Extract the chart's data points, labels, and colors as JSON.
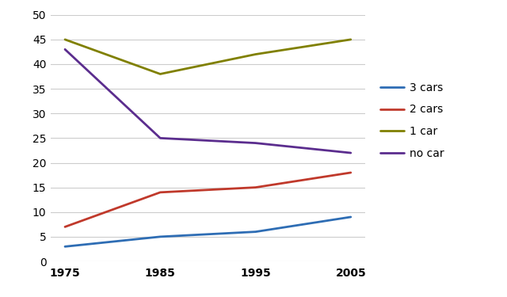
{
  "years": [
    1975,
    1985,
    1995,
    2005
  ],
  "series": {
    "3 cars": {
      "values": [
        3,
        5,
        6,
        9
      ],
      "color": "#2e6db4",
      "linewidth": 2.0
    },
    "2 cars": {
      "values": [
        7,
        14,
        15,
        18
      ],
      "color": "#c0392b",
      "linewidth": 2.0
    },
    "1 car": {
      "values": [
        45,
        38,
        42,
        45
      ],
      "color": "#808000",
      "linewidth": 2.0
    },
    "no car": {
      "values": [
        43,
        25,
        24,
        22
      ],
      "color": "#5b2d8e",
      "linewidth": 2.0
    }
  },
  "legend_order": [
    "3 cars",
    "2 cars",
    "1 car",
    "no car"
  ],
  "ylim": [
    0,
    50
  ],
  "yticks": [
    0,
    5,
    10,
    15,
    20,
    25,
    30,
    35,
    40,
    45,
    50
  ],
  "xticks": [
    1975,
    1985,
    1995,
    2005
  ],
  "background_color": "#ffffff",
  "grid_color": "#cccccc",
  "figsize": [
    6.4,
    3.75
  ],
  "dpi": 100
}
